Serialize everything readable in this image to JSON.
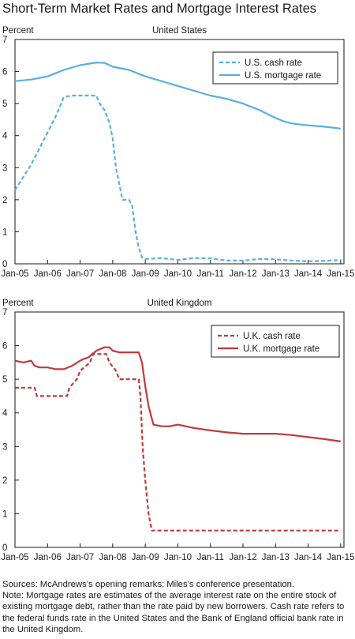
{
  "title": "Short-Term Market Rates and Mortgage Interest Rates",
  "footer": {
    "sources": "Sources: McAndrews’s opening remarks; Miles’s conference presentation.",
    "note": "Note: Mortgage rates are estimates of the average interest rate on the entire stock of existing mortgage debt, rather than the rate paid by new borrowers. Cash rate refers to the federal funds rate in the United States and the Bank of England official bank rate in the United Kingdom."
  },
  "colors": {
    "us": "#5aaee0",
    "uk": "#c0393b",
    "axis": "#1a1a1a"
  },
  "chart_data": [
    {
      "type": "line",
      "title": "United States",
      "ylabel": "Percent",
      "ylim": [
        0,
        7
      ],
      "yticks": [
        "0",
        "1",
        "2",
        "3",
        "4",
        "5",
        "6",
        "7"
      ],
      "xlim": [
        2005.0,
        2015.1
      ],
      "xticks": [
        "Jan-05",
        "Jan-06",
        "Jan-07",
        "Jan-08",
        "Jan-09",
        "Jan-10",
        "Jan-11",
        "Jan-12",
        "Jan-13",
        "Jan-14",
        "Jan-15"
      ],
      "legend_position": "top-right",
      "series": [
        {
          "name": "U.S. cash rate",
          "style": "dashed",
          "color": "#5aaee0",
          "x": [
            2005.0,
            2005.25,
            2005.5,
            2005.75,
            2006.0,
            2006.25,
            2006.5,
            2006.75,
            2007.0,
            2007.25,
            2007.5,
            2007.6,
            2007.75,
            2007.9,
            2008.0,
            2008.1,
            2008.2,
            2008.3,
            2008.4,
            2008.5,
            2008.6,
            2008.7,
            2008.8,
            2008.9,
            2009.0,
            2009.5,
            2010.0,
            2010.5,
            2011.0,
            2011.5,
            2012.0,
            2012.5,
            2013.0,
            2013.5,
            2014.0,
            2014.5,
            2015.0
          ],
          "values": [
            2.3,
            2.7,
            3.1,
            3.6,
            4.1,
            4.6,
            5.2,
            5.25,
            5.25,
            5.25,
            5.25,
            5.0,
            4.8,
            4.4,
            3.9,
            3.0,
            2.5,
            2.0,
            2.0,
            2.0,
            1.8,
            1.0,
            0.5,
            0.2,
            0.15,
            0.18,
            0.12,
            0.18,
            0.17,
            0.1,
            0.1,
            0.15,
            0.14,
            0.1,
            0.08,
            0.09,
            0.12
          ]
        },
        {
          "name": "U.S. mortgage rate",
          "style": "solid",
          "color": "#5aaee0",
          "x": [
            2005.0,
            2005.5,
            2006.0,
            2006.5,
            2007.0,
            2007.5,
            2007.75,
            2008.0,
            2008.5,
            2009.0,
            2009.5,
            2010.0,
            2010.5,
            2011.0,
            2011.5,
            2012.0,
            2012.5,
            2013.0,
            2013.25,
            2013.5,
            2014.0,
            2014.5,
            2015.0
          ],
          "values": [
            5.7,
            5.75,
            5.85,
            6.05,
            6.2,
            6.28,
            6.27,
            6.15,
            6.05,
            5.85,
            5.7,
            5.55,
            5.4,
            5.25,
            5.15,
            5.0,
            4.8,
            4.55,
            4.45,
            4.38,
            4.32,
            4.28,
            4.22
          ]
        }
      ]
    },
    {
      "type": "line",
      "title": "United Kingdom",
      "ylabel": "Percent",
      "ylim": [
        0,
        7
      ],
      "yticks": [
        "0",
        "1",
        "2",
        "3",
        "4",
        "5",
        "6",
        "7"
      ],
      "xlim": [
        2005.0,
        2015.1
      ],
      "xticks": [
        "Jan-05",
        "Jan-06",
        "Jan-07",
        "Jan-08",
        "Jan-09",
        "Jan-10",
        "Jan-11",
        "Jan-12",
        "Jan-13",
        "Jan-14",
        "Jan-15"
      ],
      "legend_position": "top-right",
      "series": [
        {
          "name": "U.K. cash rate",
          "style": "dashed",
          "color": "#c0393b",
          "x": [
            2005.0,
            2005.6,
            2005.67,
            2006.6,
            2006.67,
            2006.9,
            2007.0,
            2007.3,
            2007.4,
            2007.8,
            2007.9,
            2008.1,
            2008.2,
            2008.8,
            2008.85,
            2008.92,
            2009.0,
            2009.1,
            2009.2,
            2010.0,
            2011.0,
            2012.0,
            2013.0,
            2014.0,
            2015.0
          ],
          "values": [
            4.75,
            4.75,
            4.5,
            4.5,
            4.75,
            5.0,
            5.25,
            5.5,
            5.75,
            5.75,
            5.5,
            5.25,
            5.0,
            5.0,
            4.5,
            3.0,
            2.0,
            1.0,
            0.5,
            0.5,
            0.5,
            0.5,
            0.5,
            0.5,
            0.5
          ]
        },
        {
          "name": "U.K. mortgage rate",
          "style": "solid",
          "color": "#c0393b",
          "x": [
            2005.0,
            2005.25,
            2005.5,
            2005.6,
            2005.75,
            2006.0,
            2006.25,
            2006.5,
            2006.75,
            2007.0,
            2007.1,
            2007.25,
            2007.5,
            2007.75,
            2007.9,
            2008.0,
            2008.2,
            2008.5,
            2008.8,
            2008.9,
            2009.0,
            2009.1,
            2009.25,
            2009.5,
            2009.75,
            2010.0,
            2010.5,
            2011.0,
            2011.5,
            2012.0,
            2012.5,
            2013.0,
            2013.5,
            2014.0,
            2014.5,
            2015.0
          ],
          "values": [
            5.55,
            5.5,
            5.55,
            5.4,
            5.35,
            5.35,
            5.3,
            5.3,
            5.4,
            5.55,
            5.6,
            5.65,
            5.85,
            5.95,
            5.95,
            5.85,
            5.8,
            5.8,
            5.8,
            5.5,
            4.8,
            4.2,
            3.65,
            3.6,
            3.6,
            3.65,
            3.55,
            3.48,
            3.42,
            3.38,
            3.38,
            3.38,
            3.34,
            3.28,
            3.22,
            3.15
          ]
        }
      ]
    }
  ]
}
